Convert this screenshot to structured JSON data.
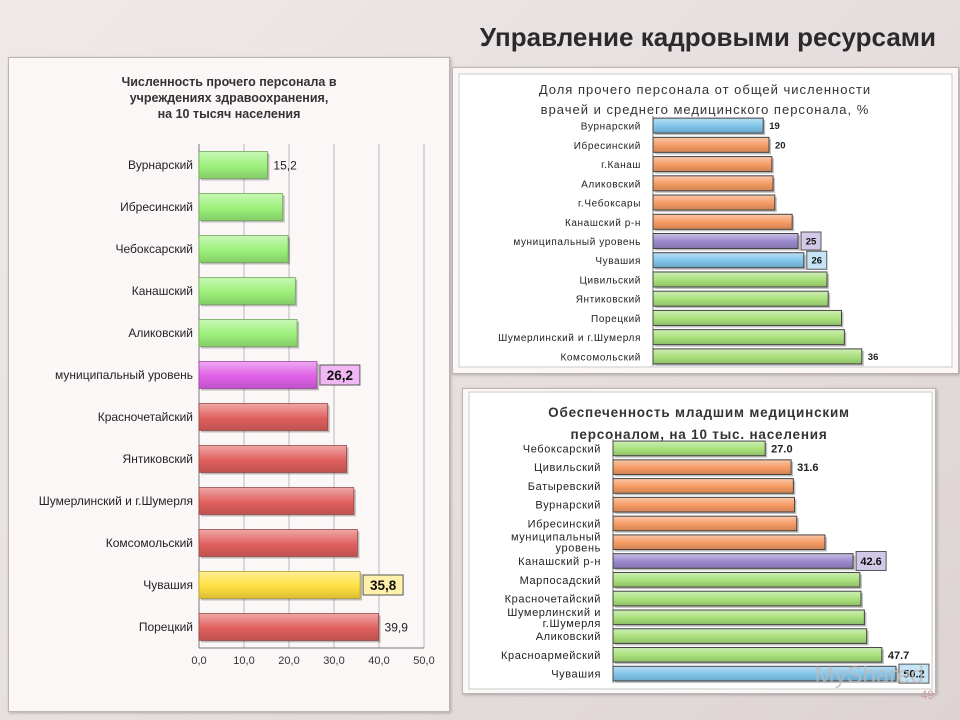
{
  "page": {
    "title": "Управление кадровыми ресурсами",
    "slide_number": "49",
    "watermark": "MyShared"
  },
  "colors": {
    "green": "#9cf07a",
    "red": "#e0605e",
    "pink": "#e060e8",
    "yellow": "#ffe040",
    "blue": "#7fc4ea",
    "orange": "#f59a62",
    "purple": "#9a88cc",
    "lightgreen": "#a8e07a"
  },
  "chart_data": [
    {
      "type": "bar",
      "orientation": "horizontal",
      "title": "Численность прочего персонала в учреждениях здравоохранения, на 10 тысяч населения",
      "title_lines": [
        "Численность прочего персонала в",
        "учреждениях здравоохранения,",
        "на 10 тысяч населения"
      ],
      "categories": [
        "Вурнарский",
        "Ибресинский",
        "Чебоксарский",
        "Канашский",
        "Аликовский",
        "муниципальный уровень",
        "Красночетайский",
        "Янтиковский",
        "Шумерлинский  и г.Шумерля",
        "Комсомольский",
        "Чувашия",
        "Порецкий"
      ],
      "values": [
        15.2,
        18.6,
        19.8,
        21.4,
        21.8,
        26.2,
        28.6,
        32.8,
        34.4,
        35.2,
        35.8,
        39.9
      ],
      "bar_colors": [
        "green",
        "green",
        "green",
        "green",
        "green",
        "pink",
        "red",
        "red",
        "red",
        "red",
        "yellow",
        "red"
      ],
      "data_labels": [
        {
          "index": 0,
          "text": "15,2",
          "boxed": false
        },
        {
          "index": 5,
          "text": "26,2",
          "boxed": true
        },
        {
          "index": 10,
          "text": "35,8",
          "boxed": true
        },
        {
          "index": 11,
          "text": "39,9",
          "boxed": false
        }
      ],
      "xlim": [
        0,
        50
      ],
      "ticks": [
        "0,0",
        "10,0",
        "20,0",
        "30,0",
        "40,0",
        "50,0"
      ],
      "grid": true
    },
    {
      "type": "bar",
      "orientation": "horizontal",
      "title": "Доля прочего персонала от общей численности врачей и среднего медицинского персонала, %",
      "title_lines": [
        "Доля прочего персонала от общей численности",
        "врачей и среднего медицинского персонала, %"
      ],
      "categories": [
        "Вурнарский",
        "Ибресинский",
        "г.Канаш",
        "Аликовский",
        "г.Чебоксары",
        "Канашский р-н",
        "муниципальный уровень",
        "Чувашия",
        "Цивильский",
        "Янтиковский",
        "Порецкий",
        "Шумерлинский  и г.Шумерля",
        "Комсомольский"
      ],
      "values": [
        19,
        20,
        20.5,
        20.7,
        21,
        24,
        25,
        26,
        30,
        30.2,
        32.5,
        33,
        36
      ],
      "bar_colors": [
        "blue",
        "orange",
        "orange",
        "orange",
        "orange",
        "orange",
        "purple",
        "blue",
        "lightgreen",
        "lightgreen",
        "lightgreen",
        "lightgreen",
        "lightgreen"
      ],
      "data_labels": [
        {
          "index": 0,
          "text": "19",
          "boxed": false
        },
        {
          "index": 1,
          "text": "20",
          "boxed": false
        },
        {
          "index": 6,
          "text": "25",
          "boxed": true
        },
        {
          "index": 7,
          "text": "26",
          "boxed": true
        },
        {
          "index": 12,
          "text": "36",
          "boxed": false
        }
      ],
      "xlim": [
        0,
        40
      ],
      "grid": false
    },
    {
      "type": "bar",
      "orientation": "horizontal",
      "title": "Обеспеченность младшим медицинским персоналом, на 10 тыс. населения",
      "title_lines": [
        "Обеспеченность младшим медицинским",
        "персоналом, на 10 тыс. населения"
      ],
      "categories": [
        [
          "Чебоксарский"
        ],
        [
          "Цивильский"
        ],
        [
          "Батыревский"
        ],
        [
          "Вурнарский"
        ],
        [
          "Ибресинский"
        ],
        [
          "муниципальный",
          "уровень"
        ],
        [
          "Канашский р-н"
        ],
        [
          "Марпосадский"
        ],
        [
          "Красночетайский"
        ],
        [
          "Шумерлинский  и",
          "г.Шумерля"
        ],
        [
          "Аликовский"
        ],
        [
          "Красноармейский"
        ],
        [
          "Чувашия"
        ]
      ],
      "values": [
        27.0,
        31.6,
        32.0,
        32.2,
        32.6,
        37.6,
        42.6,
        43.8,
        44.0,
        44.6,
        45.0,
        47.7,
        50.2
      ],
      "bar_colors": [
        "lightgreen",
        "orange",
        "orange",
        "orange",
        "orange",
        "orange",
        "purple",
        "lightgreen",
        "lightgreen",
        "lightgreen",
        "lightgreen",
        "lightgreen",
        "blue"
      ],
      "data_labels": [
        {
          "index": 0,
          "text": "27.0",
          "boxed": false
        },
        {
          "index": 1,
          "text": "31.6",
          "boxed": false
        },
        {
          "index": 6,
          "text": "42.6",
          "boxed": true
        },
        {
          "index": 11,
          "text": "47.7",
          "boxed": false
        },
        {
          "index": 12,
          "text": "50.2",
          "boxed": true
        }
      ],
      "xlim": [
        0,
        55
      ],
      "grid": false
    }
  ]
}
